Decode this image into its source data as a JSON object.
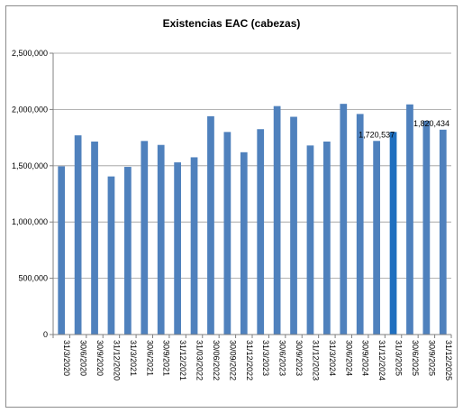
{
  "chart_data": {
    "type": "bar",
    "title": "Existencias EAC (cabezas)",
    "xlabel": "",
    "ylabel": "",
    "ylim": [
      0,
      2500000
    ],
    "yticks": [
      0,
      500000,
      1000000,
      1500000,
      2000000,
      2500000
    ],
    "ytick_labels": [
      "0",
      "500,000",
      "1,000,000",
      "1,500,000",
      "2,000,000",
      "2,500,000"
    ],
    "grid": "horizontal",
    "legend": "none",
    "bar_color": "#4f81bd",
    "highlight_color": "#1f6fbf",
    "highlight_index": 20,
    "categories": [
      "31/3/2020",
      "30/6/2020",
      "30/9/2020",
      "31/12/2020",
      "31/3/2021",
      "30/6/2021",
      "30/9/2021",
      "31/12/2021",
      "31/03/2022",
      "30/06/2022",
      "30/09/2022",
      "31/12/2022",
      "31/3/2023",
      "30/6/2023",
      "30/9/2023",
      "31/12/2023",
      "31/3/2024",
      "30/6/2024",
      "30/9/2024",
      "31/12/2024",
      "31/3/2025",
      "30/6/2025",
      "30/9/2025",
      "31/12/2025"
    ],
    "values": [
      1495000,
      1770000,
      1715000,
      1405000,
      1490000,
      1720000,
      1685000,
      1530000,
      1575000,
      1940000,
      1800000,
      1620000,
      1825000,
      2030000,
      1935000,
      1680000,
      1715000,
      2050000,
      1960000,
      1720537,
      1800000,
      2045000,
      1900000,
      1820434
    ],
    "data_labels": [
      {
        "index": 19,
        "text": "1,720,537"
      },
      {
        "index": 23,
        "text": "1,820,434"
      }
    ]
  }
}
